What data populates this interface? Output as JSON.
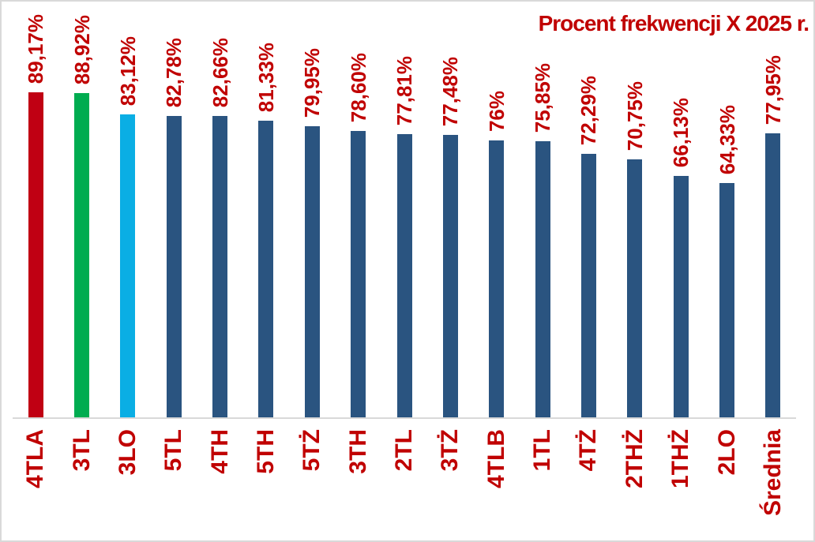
{
  "chart_data": {
    "type": "bar",
    "title": "Procent frekwencji X 2025 r.",
    "categories": [
      "4TLA",
      "3TL",
      "3LO",
      "5TL",
      "4TH",
      "5TH",
      "5TŻ",
      "3TH",
      "2TL",
      "3TŻ",
      "4TLB",
      "1TL",
      "4TŻ",
      "2THŻ",
      "1THŻ",
      "2LO",
      "Średnia"
    ],
    "values": [
      89.17,
      88.92,
      83.12,
      82.78,
      82.66,
      81.33,
      79.95,
      78.6,
      77.81,
      77.48,
      76,
      75.85,
      72.29,
      70.75,
      66.13,
      64.33,
      77.95
    ],
    "value_labels": [
      "89,17%",
      "88,92%",
      "83,12%",
      "82,78%",
      "82,66%",
      "81,33%",
      "79,95%",
      "78,60%",
      "77,81%",
      "77,48%",
      "76%",
      "75,85%",
      "72,29%",
      "70,75%",
      "66,13%",
      "64,33%",
      "77,95%"
    ],
    "bar_colors": [
      "#C00013",
      "#00AC50",
      "#0AAEE4",
      "#2A5480",
      "#2A5480",
      "#2A5480",
      "#2A5480",
      "#2A5480",
      "#2A5480",
      "#2A5480",
      "#2A5480",
      "#2A5480",
      "#2A5480",
      "#2A5480",
      "#2A5480",
      "#2A5480",
      "#2A5480"
    ],
    "xlabel": "",
    "ylabel": "",
    "ylim": [
      0,
      100
    ],
    "grid": false,
    "legend": false,
    "value_labels_rotation": -90,
    "category_labels_rotation": -90
  },
  "colors": {
    "label_red": "#C00000",
    "bar_default": "#2A5480",
    "bar_highlight_red": "#C00013",
    "bar_highlight_green": "#00AC50",
    "bar_highlight_blue": "#0AAEE4",
    "axis_line": "#D9D9D9",
    "background": "#FFFFFF"
  }
}
